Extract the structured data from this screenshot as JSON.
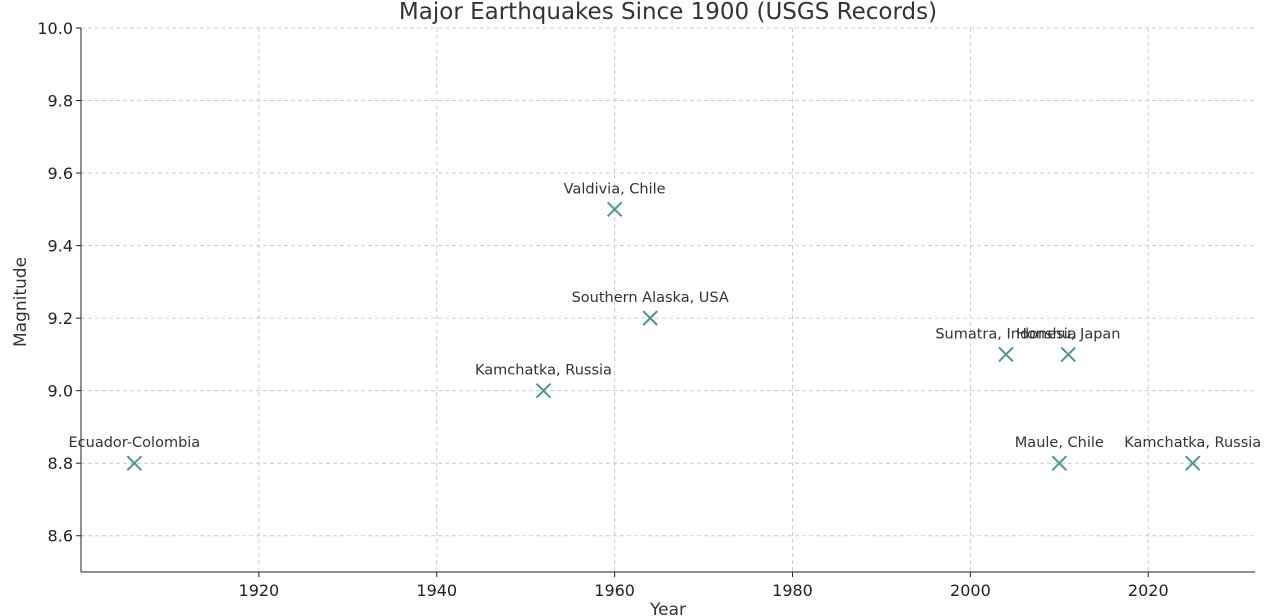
{
  "chart_data": {
    "type": "scatter",
    "title": "Major Earthquakes Since 1900 (USGS Records)",
    "xlabel": "Year",
    "ylabel": "Magnitude",
    "xlim": [
      1900,
      2032
    ],
    "ylim": [
      8.5,
      10.0
    ],
    "xticks": [
      1920,
      1940,
      1960,
      1980,
      2000,
      2020
    ],
    "yticks": [
      8.6,
      8.8,
      9.0,
      9.2,
      9.4,
      9.6,
      9.8,
      10.0
    ],
    "grid": true,
    "marker": "x",
    "marker_color": "#4a9b7c",
    "points": [
      {
        "x": 1906,
        "y": 8.8,
        "label": "Ecuador-Colombia"
      },
      {
        "x": 1952,
        "y": 9.0,
        "label": "Kamchatka, Russia"
      },
      {
        "x": 1960,
        "y": 9.5,
        "label": "Valdivia, Chile"
      },
      {
        "x": 1964,
        "y": 9.2,
        "label": "Southern Alaska, USA"
      },
      {
        "x": 2004,
        "y": 9.1,
        "label": "Sumatra, Indonesia"
      },
      {
        "x": 2010,
        "y": 8.8,
        "label": "Maule, Chile"
      },
      {
        "x": 2011,
        "y": 9.1,
        "label": "Honshu, Japan"
      },
      {
        "x": 2025,
        "y": 8.8,
        "label": "Kamchatka, Russia"
      }
    ]
  }
}
